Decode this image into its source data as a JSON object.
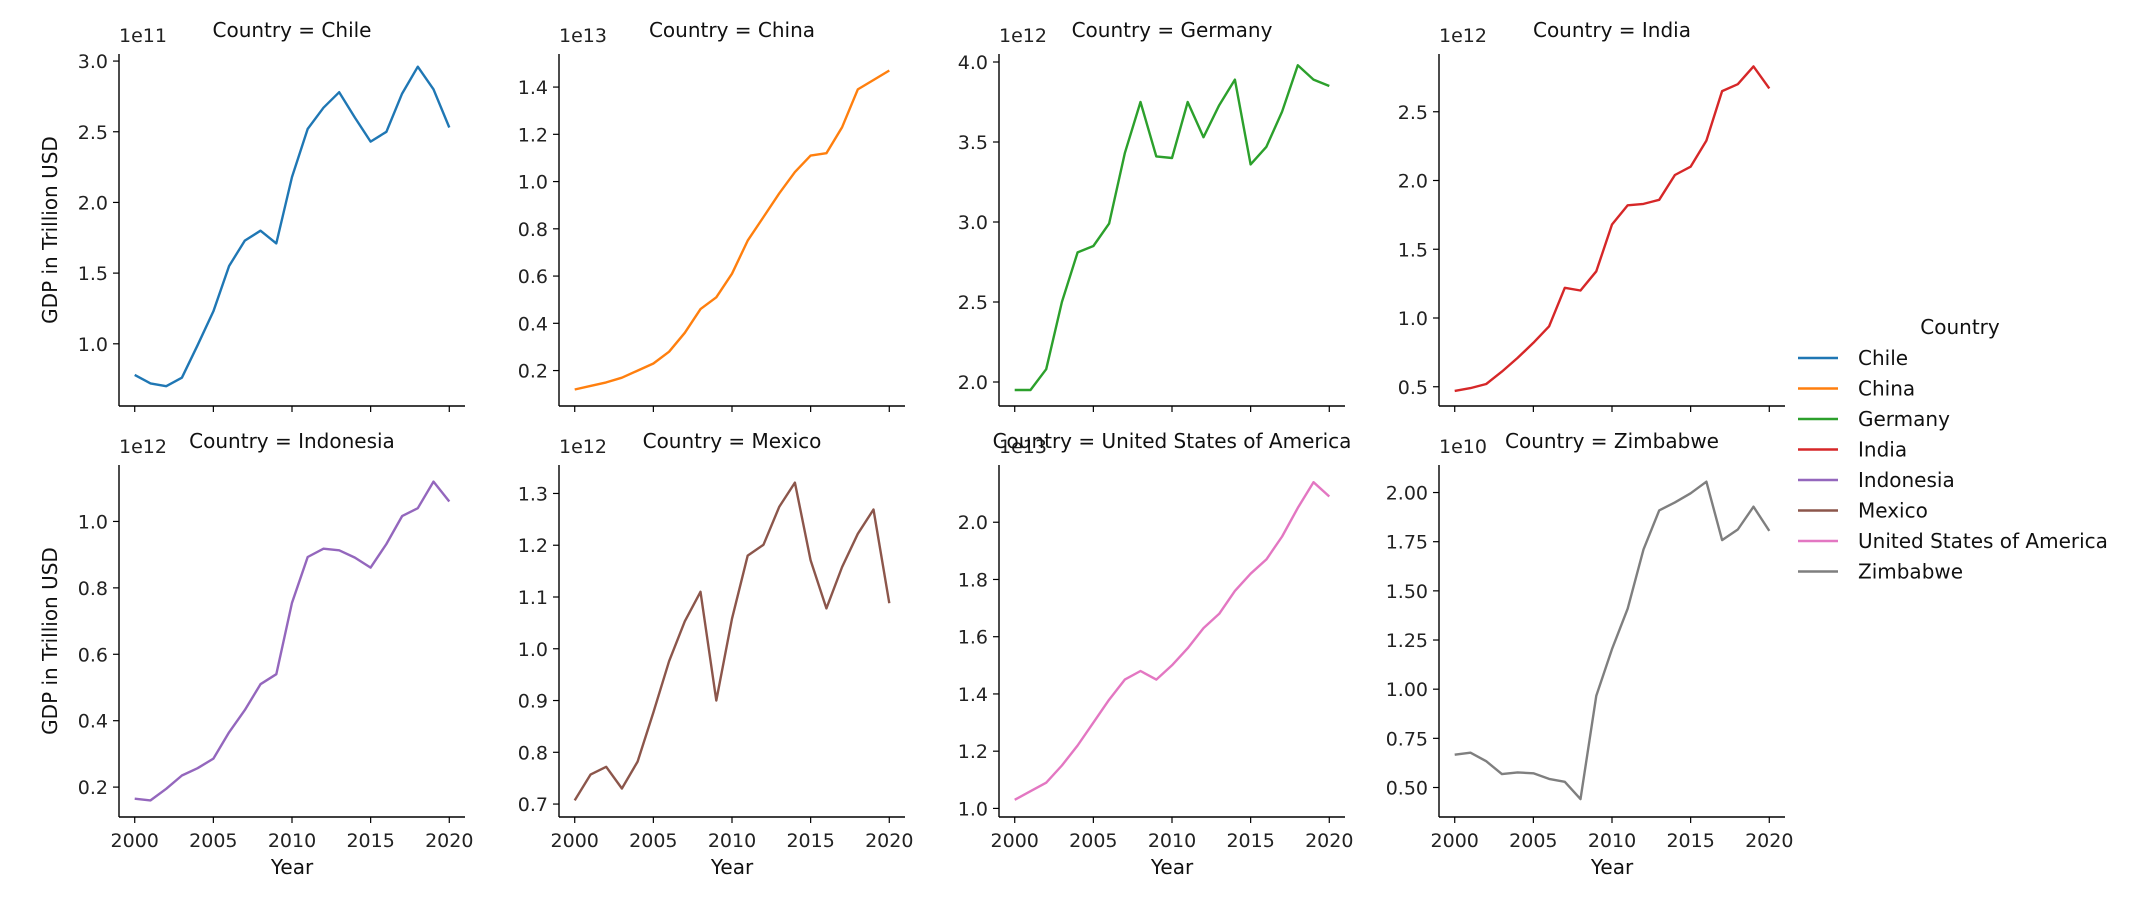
{
  "chart_data": {
    "type": "line",
    "layout": "facet-grid-2x4",
    "facet_title_prefix": "Country = ",
    "legend": {
      "title": "Country",
      "placement": "right",
      "items": [
        {
          "name": "Chile",
          "color": "#1f77b4"
        },
        {
          "name": "China",
          "color": "#ff7f0e"
        },
        {
          "name": "Germany",
          "color": "#2ca02c"
        },
        {
          "name": "India",
          "color": "#d62728"
        },
        {
          "name": "Indonesia",
          "color": "#9467bd"
        },
        {
          "name": "Mexico",
          "color": "#8c564b"
        },
        {
          "name": "United States of America",
          "color": "#e377c2"
        },
        {
          "name": "Zimbabwe",
          "color": "#7f7f7f"
        }
      ]
    },
    "xlabel": "Year",
    "ylabel": "GDP in Trillion USD",
    "xlim": [
      1999,
      2021
    ],
    "xticks": [
      2000,
      2005,
      2010,
      2015,
      2020
    ],
    "x": [
      2000,
      2001,
      2002,
      2003,
      2004,
      2005,
      2006,
      2007,
      2008,
      2009,
      2010,
      2011,
      2012,
      2013,
      2014,
      2015,
      2016,
      2017,
      2018,
      2019,
      2020
    ],
    "grid": false,
    "panels": [
      {
        "country": "Chile",
        "title": "Country = Chile",
        "color": "#1f77b4",
        "offset": "1e11",
        "ylim": [
          0.56,
          3.05
        ],
        "yticks": [
          1.0,
          1.5,
          2.0,
          2.5,
          3.0
        ],
        "ytick_labels": [
          "1.0",
          "1.5",
          "2.0",
          "2.5",
          "3.0"
        ],
        "values": [
          0.78,
          0.72,
          0.7,
          0.76,
          0.99,
          1.23,
          1.55,
          1.73,
          1.8,
          1.71,
          2.18,
          2.52,
          2.67,
          2.78,
          2.6,
          2.43,
          2.5,
          2.77,
          2.96,
          2.8,
          2.53
        ]
      },
      {
        "country": "China",
        "title": "Country = China",
        "color": "#ff7f0e",
        "offset": "1e13",
        "ylim": [
          0.05,
          1.54
        ],
        "yticks": [
          0.2,
          0.4,
          0.6,
          0.8,
          1.0,
          1.2,
          1.4
        ],
        "ytick_labels": [
          "0.2",
          "0.4",
          "0.6",
          "0.8",
          "1.0",
          "1.2",
          "1.4"
        ],
        "values": [
          0.12,
          0.135,
          0.15,
          0.17,
          0.2,
          0.23,
          0.28,
          0.36,
          0.46,
          0.51,
          0.61,
          0.75,
          0.85,
          0.95,
          1.04,
          1.11,
          1.12,
          1.23,
          1.39,
          1.43,
          1.47
        ]
      },
      {
        "country": "Germany",
        "title": "Country = Germany",
        "color": "#2ca02c",
        "offset": "1e12",
        "ylim": [
          1.85,
          4.05
        ],
        "yticks": [
          2.0,
          2.5,
          3.0,
          3.5,
          4.0
        ],
        "ytick_labels": [
          "2.0",
          "2.5",
          "3.0",
          "3.5",
          "4.0"
        ],
        "values": [
          1.95,
          1.95,
          2.08,
          2.5,
          2.81,
          2.85,
          2.99,
          3.43,
          3.75,
          3.41,
          3.4,
          3.75,
          3.53,
          3.73,
          3.89,
          3.36,
          3.47,
          3.69,
          3.98,
          3.89,
          3.85
        ]
      },
      {
        "country": "India",
        "title": "Country = India",
        "color": "#d62728",
        "offset": "1e12",
        "ylim": [
          0.36,
          2.92
        ],
        "yticks": [
          0.5,
          1.0,
          1.5,
          2.0,
          2.5
        ],
        "ytick_labels": [
          "0.5",
          "1.0",
          "1.5",
          "2.0",
          "2.5"
        ],
        "values": [
          0.47,
          0.49,
          0.52,
          0.61,
          0.71,
          0.82,
          0.94,
          1.22,
          1.2,
          1.34,
          1.68,
          1.82,
          1.83,
          1.86,
          2.04,
          2.1,
          2.29,
          2.65,
          2.7,
          2.83,
          2.67
        ]
      },
      {
        "country": "Indonesia",
        "title": "Country = Indonesia",
        "color": "#9467bd",
        "offset": "1e12",
        "ylim": [
          0.11,
          1.17
        ],
        "yticks": [
          0.2,
          0.4,
          0.6,
          0.8,
          1.0
        ],
        "ytick_labels": [
          "0.2",
          "0.4",
          "0.6",
          "0.8",
          "1.0"
        ],
        "values": [
          0.165,
          0.16,
          0.195,
          0.235,
          0.257,
          0.286,
          0.365,
          0.432,
          0.51,
          0.54,
          0.755,
          0.893,
          0.918,
          0.913,
          0.891,
          0.861,
          0.932,
          1.016,
          1.04,
          1.12,
          1.06
        ]
      },
      {
        "country": "Mexico",
        "title": "Country = Mexico",
        "color": "#8c564b",
        "offset": "1e12",
        "ylim": [
          0.675,
          1.355
        ],
        "yticks": [
          0.7,
          0.8,
          0.9,
          1.0,
          1.1,
          1.2,
          1.3
        ],
        "ytick_labels": [
          "0.7",
          "0.8",
          "0.9",
          "1.0",
          "1.1",
          "1.2",
          "1.3"
        ],
        "values": [
          0.707,
          0.757,
          0.772,
          0.73,
          0.782,
          0.877,
          0.976,
          1.053,
          1.11,
          0.9,
          1.058,
          1.18,
          1.201,
          1.274,
          1.321,
          1.171,
          1.078,
          1.158,
          1.222,
          1.269,
          1.088
        ]
      },
      {
        "country": "United States of America",
        "title": "Country = United States of America",
        "color": "#e377c2",
        "offset": "1e13",
        "ylim": [
          0.97,
          2.2
        ],
        "yticks": [
          1.0,
          1.2,
          1.4,
          1.6,
          1.8,
          2.0
        ],
        "ytick_labels": [
          "1.0",
          "1.2",
          "1.4",
          "1.6",
          "1.8",
          "2.0"
        ],
        "values": [
          1.03,
          1.06,
          1.09,
          1.15,
          1.22,
          1.3,
          1.38,
          1.45,
          1.48,
          1.45,
          1.5,
          1.56,
          1.63,
          1.68,
          1.76,
          1.82,
          1.87,
          1.95,
          2.05,
          2.14,
          2.09
        ]
      },
      {
        "country": "Zimbabwe",
        "title": "Country = Zimbabwe",
        "color": "#7f7f7f",
        "offset": "1e10",
        "ylim": [
          0.35,
          2.14
        ],
        "yticks": [
          0.5,
          0.75,
          1.0,
          1.25,
          1.5,
          1.75,
          2.0
        ],
        "ytick_labels": [
          "0.50",
          "0.75",
          "1.00",
          "1.25",
          "1.50",
          "1.75",
          "2.00"
        ],
        "values": [
          0.667,
          0.677,
          0.634,
          0.568,
          0.577,
          0.572,
          0.544,
          0.529,
          0.441,
          0.967,
          1.204,
          1.41,
          1.711,
          1.909,
          1.95,
          1.996,
          2.055,
          1.758,
          1.812,
          1.928,
          1.805
        ]
      }
    ]
  }
}
